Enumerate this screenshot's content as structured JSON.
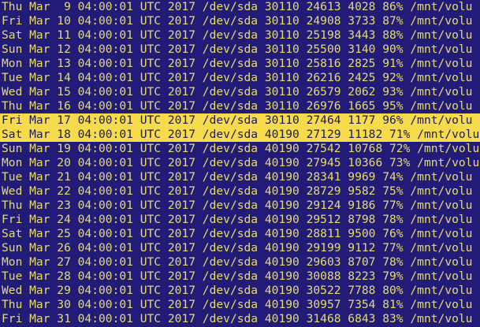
{
  "lines": [
    {
      "text": "Thu Mar  9 04:00:01 UTC 2017 /dev/sda 30110 24613 4028 86% /mnt/volu",
      "highlighted": false
    },
    {
      "text": "Fri Mar 10 04:00:01 UTC 2017 /dev/sda 30110 24908 3733 87% /mnt/volu",
      "highlighted": false
    },
    {
      "text": "Sat Mar 11 04:00:01 UTC 2017 /dev/sda 30110 25198 3443 88% /mnt/volu",
      "highlighted": false
    },
    {
      "text": "Sun Mar 12 04:00:01 UTC 2017 /dev/sda 30110 25500 3140 90% /mnt/volu",
      "highlighted": false
    },
    {
      "text": "Mon Mar 13 04:00:01 UTC 2017 /dev/sda 30110 25816 2825 91% /mnt/volu",
      "highlighted": false
    },
    {
      "text": "Tue Mar 14 04:00:01 UTC 2017 /dev/sda 30110 26216 2425 92% /mnt/volu",
      "highlighted": false
    },
    {
      "text": "Wed Mar 15 04:00:01 UTC 2017 /dev/sda 30110 26579 2062 93% /mnt/volu",
      "highlighted": false
    },
    {
      "text": "Thu Mar 16 04:00:01 UTC 2017 /dev/sda 30110 26976 1665 95% /mnt/volu",
      "highlighted": false
    },
    {
      "text": "Fri Mar 17 04:00:01 UTC 2017 /dev/sda 30110 27464 1177 96% /mnt/volu",
      "highlighted": true
    },
    {
      "text": "Sat Mar 18 04:00:01 UTC 2017 /dev/sda 40190 27129 11182 71% /mnt/volu",
      "highlighted": true
    },
    {
      "text": "Sun Mar 19 04:00:01 UTC 2017 /dev/sda 40190 27542 10768 72% /mnt/volu",
      "highlighted": false
    },
    {
      "text": "Mon Mar 20 04:00:01 UTC 2017 /dev/sda 40190 27945 10366 73% /mnt/volu",
      "highlighted": false
    },
    {
      "text": "Tue Mar 21 04:00:01 UTC 2017 /dev/sda 40190 28341 9969 74% /mnt/volu",
      "highlighted": false
    },
    {
      "text": "Wed Mar 22 04:00:01 UTC 2017 /dev/sda 40190 28729 9582 75% /mnt/volu",
      "highlighted": false
    },
    {
      "text": "Thu Mar 23 04:00:01 UTC 2017 /dev/sda 40190 29124 9186 77% /mnt/volu",
      "highlighted": false
    },
    {
      "text": "Fri Mar 24 04:00:01 UTC 2017 /dev/sda 40190 29512 8798 78% /mnt/volu",
      "highlighted": false
    },
    {
      "text": "Sat Mar 25 04:00:01 UTC 2017 /dev/sda 40190 28811 9500 76% /mnt/volu",
      "highlighted": false
    },
    {
      "text": "Sun Mar 26 04:00:01 UTC 2017 /dev/sda 40190 29199 9112 77% /mnt/volu",
      "highlighted": false
    },
    {
      "text": "Mon Mar 27 04:00:01 UTC 2017 /dev/sda 40190 29603 8707 78% /mnt/volu",
      "highlighted": false
    },
    {
      "text": "Tue Mar 28 04:00:01 UTC 2017 /dev/sda 40190 30088 8223 79% /mnt/volu",
      "highlighted": false
    },
    {
      "text": "Wed Mar 29 04:00:01 UTC 2017 /dev/sda 40190 30522 7788 80% /mnt/volu",
      "highlighted": false
    },
    {
      "text": "Thu Mar 30 04:00:01 UTC 2017 /dev/sda 40190 30957 7354 81% /mnt/volu",
      "highlighted": false
    },
    {
      "text": "Fri Mar 31 04:00:01 UTC 2017 /dev/sda 40190 31468 6843 83% /mnt/volu",
      "highlighted": false
    }
  ]
}
